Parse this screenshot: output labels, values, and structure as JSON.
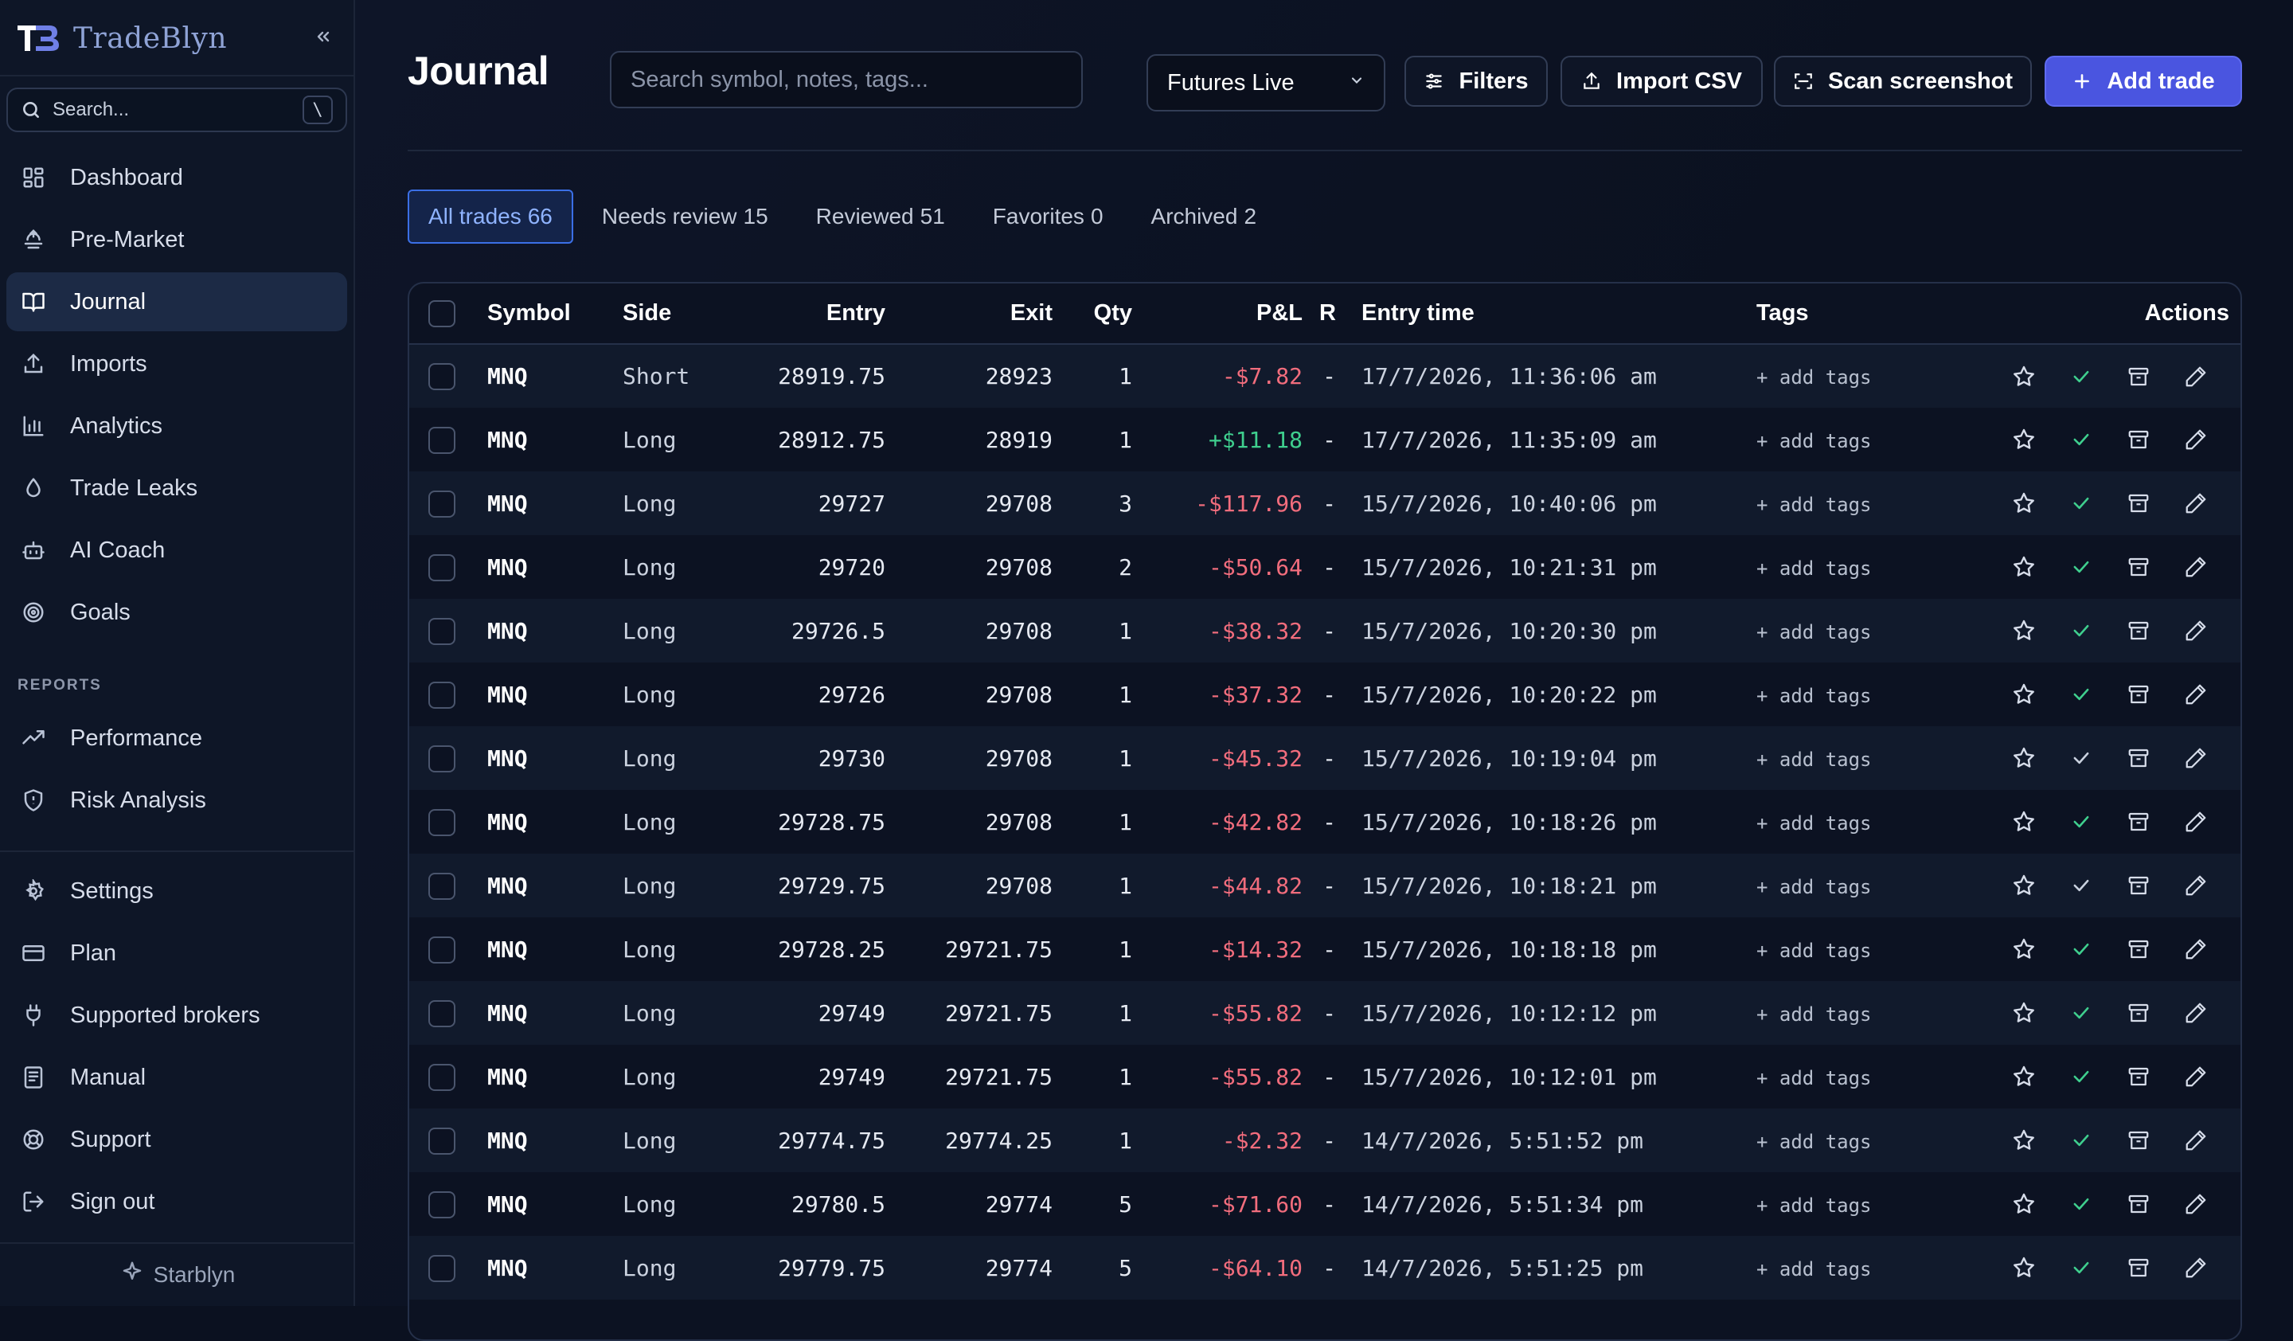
{
  "sidebar": {
    "brand": "TradeBlyn",
    "search_label": "Search...",
    "search_shortcut": "\\",
    "nav": [
      {
        "label": "Dashboard",
        "icon": "dashboard-icon"
      },
      {
        "label": "Pre-Market",
        "icon": "pre-market-icon"
      },
      {
        "label": "Journal",
        "icon": "book-icon",
        "active": true
      },
      {
        "label": "Imports",
        "icon": "upload-icon"
      },
      {
        "label": "Analytics",
        "icon": "bar-chart-icon"
      },
      {
        "label": "Trade Leaks",
        "icon": "droplet-icon"
      },
      {
        "label": "AI Coach",
        "icon": "bot-icon"
      },
      {
        "label": "Goals",
        "icon": "target-icon"
      }
    ],
    "reports_label": "REPORTS",
    "reports": [
      {
        "label": "Performance",
        "icon": "trend-icon"
      },
      {
        "label": "Risk Analysis",
        "icon": "shield-icon"
      }
    ],
    "bottom": [
      {
        "label": "Settings",
        "icon": "gear-icon"
      },
      {
        "label": "Plan",
        "icon": "card-icon"
      },
      {
        "label": "Supported brokers",
        "icon": "plug-icon"
      },
      {
        "label": "Manual",
        "icon": "manual-icon"
      },
      {
        "label": "Support",
        "icon": "lifebuoy-icon"
      },
      {
        "label": "Sign out",
        "icon": "sign-out-icon"
      }
    ],
    "footer": "Starblyn"
  },
  "header": {
    "title": "Journal",
    "search_placeholder": "Search symbol, notes, tags...",
    "account_select": "Futures Live",
    "filters_label": "Filters",
    "import_label": "Import CSV",
    "scan_label": "Scan screenshot",
    "add_label": "Add trade"
  },
  "tabs": [
    {
      "label": "All trades",
      "count": "66",
      "active": true
    },
    {
      "label": "Needs review",
      "count": "15"
    },
    {
      "label": "Reviewed",
      "count": "51"
    },
    {
      "label": "Favorites",
      "count": "0"
    },
    {
      "label": "Archived",
      "count": "2"
    }
  ],
  "table": {
    "columns": [
      "Symbol",
      "Side",
      "Entry",
      "Exit",
      "Qty",
      "P&L",
      "R",
      "Entry time",
      "Tags",
      "Actions"
    ],
    "add_tags_label": "+ add tags",
    "rows": [
      {
        "symbol": "MNQ",
        "side": "Short",
        "entry": "28919.75",
        "exit": "28923",
        "qty": "1",
        "pnl": "-$7.82",
        "r": "-",
        "time": "17/7/2026, 11:36:06 am",
        "reviewed": true
      },
      {
        "symbol": "MNQ",
        "side": "Long",
        "entry": "28912.75",
        "exit": "28919",
        "qty": "1",
        "pnl": "+$11.18",
        "r": "-",
        "time": "17/7/2026, 11:35:09 am",
        "reviewed": true
      },
      {
        "symbol": "MNQ",
        "side": "Long",
        "entry": "29727",
        "exit": "29708",
        "qty": "3",
        "pnl": "-$117.96",
        "r": "-",
        "time": "15/7/2026, 10:40:06 pm",
        "reviewed": true
      },
      {
        "symbol": "MNQ",
        "side": "Long",
        "entry": "29720",
        "exit": "29708",
        "qty": "2",
        "pnl": "-$50.64",
        "r": "-",
        "time": "15/7/2026, 10:21:31 pm",
        "reviewed": true
      },
      {
        "symbol": "MNQ",
        "side": "Long",
        "entry": "29726.5",
        "exit": "29708",
        "qty": "1",
        "pnl": "-$38.32",
        "r": "-",
        "time": "15/7/2026, 10:20:30 pm",
        "reviewed": true
      },
      {
        "symbol": "MNQ",
        "side": "Long",
        "entry": "29726",
        "exit": "29708",
        "qty": "1",
        "pnl": "-$37.32",
        "r": "-",
        "time": "15/7/2026, 10:20:22 pm",
        "reviewed": true
      },
      {
        "symbol": "MNQ",
        "side": "Long",
        "entry": "29730",
        "exit": "29708",
        "qty": "1",
        "pnl": "-$45.32",
        "r": "-",
        "time": "15/7/2026, 10:19:04 pm",
        "reviewed": false
      },
      {
        "symbol": "MNQ",
        "side": "Long",
        "entry": "29728.75",
        "exit": "29708",
        "qty": "1",
        "pnl": "-$42.82",
        "r": "-",
        "time": "15/7/2026, 10:18:26 pm",
        "reviewed": true
      },
      {
        "symbol": "MNQ",
        "side": "Long",
        "entry": "29729.75",
        "exit": "29708",
        "qty": "1",
        "pnl": "-$44.82",
        "r": "-",
        "time": "15/7/2026, 10:18:21 pm",
        "reviewed": false
      },
      {
        "symbol": "MNQ",
        "side": "Long",
        "entry": "29728.25",
        "exit": "29721.75",
        "qty": "1",
        "pnl": "-$14.32",
        "r": "-",
        "time": "15/7/2026, 10:18:18 pm",
        "reviewed": true
      },
      {
        "symbol": "MNQ",
        "side": "Long",
        "entry": "29749",
        "exit": "29721.75",
        "qty": "1",
        "pnl": "-$55.82",
        "r": "-",
        "time": "15/7/2026, 10:12:12 pm",
        "reviewed": true
      },
      {
        "symbol": "MNQ",
        "side": "Long",
        "entry": "29749",
        "exit": "29721.75",
        "qty": "1",
        "pnl": "-$55.82",
        "r": "-",
        "time": "15/7/2026, 10:12:01 pm",
        "reviewed": true
      },
      {
        "symbol": "MNQ",
        "side": "Long",
        "entry": "29774.75",
        "exit": "29774.25",
        "qty": "1",
        "pnl": "-$2.32",
        "r": "-",
        "time": "14/7/2026, 5:51:52 pm",
        "reviewed": true
      },
      {
        "symbol": "MNQ",
        "side": "Long",
        "entry": "29780.5",
        "exit": "29774",
        "qty": "5",
        "pnl": "-$71.60",
        "r": "-",
        "time": "14/7/2026, 5:51:34 pm",
        "reviewed": true
      },
      {
        "symbol": "MNQ",
        "side": "Long",
        "entry": "29779.75",
        "exit": "29774",
        "qty": "5",
        "pnl": "-$64.10",
        "r": "-",
        "time": "14/7/2026, 5:51:25 pm",
        "reviewed": true
      }
    ]
  },
  "colors": {
    "positive": "#3fcf8e",
    "negative": "#f26d7d",
    "reviewed_check": "#3fcf8e",
    "unreviewed_check": "#c9d1df",
    "accent": "#4a55e0"
  }
}
